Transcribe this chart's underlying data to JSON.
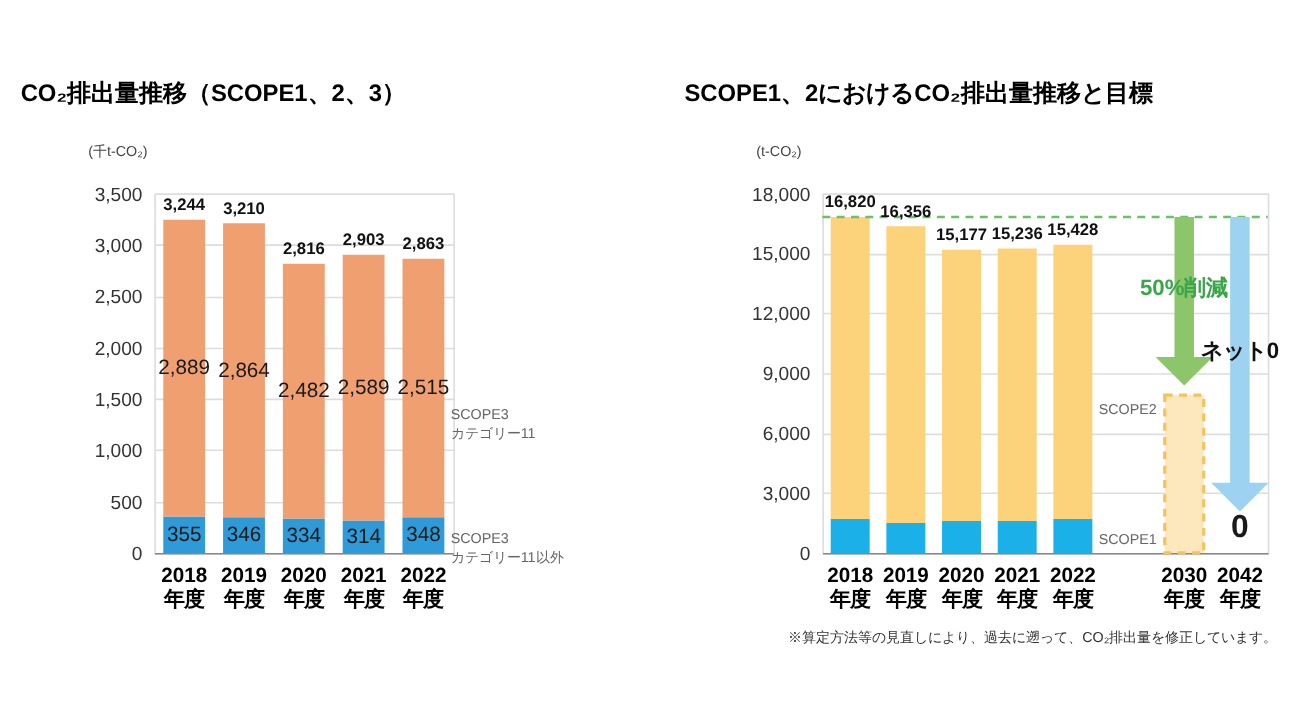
{
  "chart_data": [
    {
      "type": "bar",
      "title": "CO₂排出量推移（SCOPE1、2、3）",
      "ylabel": "(千t-CO₂)",
      "categories": [
        "2018\n年度",
        "2019\n年度",
        "2020\n年度",
        "2021\n年度",
        "2022\n年度"
      ],
      "stacked": true,
      "ylim": [
        0,
        3500
      ],
      "yticks": [
        0,
        500,
        {
          "value": 1000,
          "label": "1,000"
        },
        {
          "value": 1500,
          "label": "1,500"
        },
        {
          "value": 2000,
          "label": "2,000"
        },
        {
          "value": 2500,
          "label": "2,500"
        },
        {
          "value": 3000,
          "label": "3,000"
        },
        {
          "value": 3500,
          "label": "3,500"
        }
      ],
      "grid": "y",
      "series": [
        {
          "name": "SCOPE3\nカテゴリー11以外",
          "color": "#2e9bd8",
          "values": [
            355,
            346,
            334,
            314,
            348
          ],
          "value_labels": [
            "355",
            "346",
            "334",
            "314",
            "348"
          ]
        },
        {
          "name": "SCOPE3\nカテゴリー11",
          "color": "#f0a070",
          "values": [
            2889,
            2864,
            2482,
            2589,
            2515
          ],
          "value_labels": [
            "2,889",
            "2,864",
            "2,482",
            "2,589",
            "2,515"
          ]
        }
      ],
      "totals": [
        "3,244",
        "3,210",
        "2,816",
        "2,903",
        "2,863"
      ]
    },
    {
      "type": "bar",
      "title": "SCOPE1、2におけるCO₂排出量推移と目標",
      "ylabel": "(t-CO₂)",
      "categories": [
        "2018\n年度",
        "2019\n年度",
        "2020\n年度",
        "2021\n年度",
        "2022\n年度",
        "2030\n年度",
        "2042\n年度"
      ],
      "stacked": true,
      "ylim": [
        0,
        18000
      ],
      "yticks": [
        0,
        {
          "value": 3000,
          "label": "3,000"
        },
        {
          "value": 6000,
          "label": "6,000"
        },
        {
          "value": 9000,
          "label": "9,000"
        },
        {
          "value": 12000,
          "label": "12,000"
        },
        {
          "value": 15000,
          "label": "15,000"
        },
        {
          "value": 18000,
          "label": "18,000"
        }
      ],
      "grid": "y",
      "series": [
        {
          "name": "SCOPE1",
          "color": "#1bb0e8",
          "values": [
            1700,
            1500,
            1600,
            1600,
            1700,
            null,
            null
          ]
        },
        {
          "name": "SCOPE2",
          "color": "#fcd27a",
          "values": [
            15120,
            14856,
            13577,
            13636,
            13728,
            null,
            null
          ]
        },
        {
          "color": "#fde8bd",
          "line_style": "dashed",
          "values": [
            null,
            null,
            null,
            null,
            null,
            7900,
            0
          ],
          "value_labels": [
            null,
            null,
            null,
            null,
            null,
            null,
            "0"
          ]
        }
      ],
      "totals": [
        "16,820",
        "16,356",
        "15,177",
        "15,236",
        "15,428",
        null,
        null
      ],
      "ref_lines": [
        {
          "axis": "y",
          "value": 16820,
          "color": "#6cc06c",
          "line_style": "dashed"
        }
      ],
      "annotations": [
        "50%削減",
        "ネット0",
        "※算定方法等の見直しにより、過去に遡って、CO₂排出量を修正しています。"
      ]
    }
  ]
}
